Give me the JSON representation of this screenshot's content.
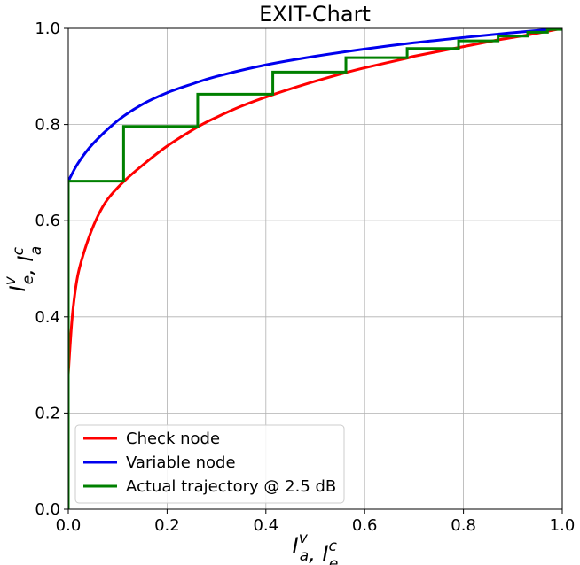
{
  "chart_data": {
    "type": "line",
    "title": "EXIT-Chart",
    "xlabel": "I_a^v, I_e^c",
    "ylabel": "I_e^v, I_a^c",
    "xlabel_parts": [
      {
        "t": "I",
        "sub": "a",
        "sup": "v"
      },
      {
        "t": ", ",
        "sub": "",
        "sup": ""
      },
      {
        "t": "I",
        "sub": "e",
        "sup": "c"
      }
    ],
    "ylabel_parts": [
      {
        "t": "I",
        "sub": "e",
        "sup": "v"
      },
      {
        "t": ", ",
        "sub": "",
        "sup": ""
      },
      {
        "t": "I",
        "sub": "a",
        "sup": "c"
      }
    ],
    "xlim": [
      0.0,
      1.0
    ],
    "ylim": [
      0.0,
      1.0
    ],
    "xticks": [
      "0.0",
      "0.2",
      "0.4",
      "0.6",
      "0.8",
      "1.0"
    ],
    "yticks": [
      "0.0",
      "0.2",
      "0.4",
      "0.6",
      "0.8",
      "1.0"
    ],
    "grid": true,
    "legend_position": "lower-left",
    "series": [
      {
        "name": "Check node",
        "color": "#ff0000",
        "style": "curve",
        "points": [
          [
            0.0,
            0.28
          ],
          [
            0.005,
            0.36
          ],
          [
            0.01,
            0.42
          ],
          [
            0.02,
            0.49
          ],
          [
            0.04,
            0.56
          ],
          [
            0.06,
            0.61
          ],
          [
            0.08,
            0.645
          ],
          [
            0.112,
            0.681
          ],
          [
            0.15,
            0.715
          ],
          [
            0.2,
            0.755
          ],
          [
            0.262,
            0.795
          ],
          [
            0.3,
            0.815
          ],
          [
            0.35,
            0.838
          ],
          [
            0.414,
            0.862
          ],
          [
            0.5,
            0.89
          ],
          [
            0.562,
            0.908
          ],
          [
            0.6,
            0.918
          ],
          [
            0.686,
            0.938
          ],
          [
            0.7,
            0.942
          ],
          [
            0.8,
            0.962
          ],
          [
            0.87,
            0.976
          ],
          [
            0.9,
            0.981
          ],
          [
            0.95,
            0.99
          ],
          [
            1.0,
            1.0
          ]
        ]
      },
      {
        "name": "Variable node",
        "color": "#0000ee",
        "style": "curve",
        "points": [
          [
            0.0,
            0.682
          ],
          [
            0.02,
            0.72
          ],
          [
            0.05,
            0.76
          ],
          [
            0.1,
            0.808
          ],
          [
            0.15,
            0.842
          ],
          [
            0.2,
            0.866
          ],
          [
            0.25,
            0.884
          ],
          [
            0.3,
            0.9
          ],
          [
            0.4,
            0.924
          ],
          [
            0.5,
            0.942
          ],
          [
            0.6,
            0.957
          ],
          [
            0.7,
            0.97
          ],
          [
            0.8,
            0.981
          ],
          [
            0.9,
            0.991
          ],
          [
            1.0,
            1.0
          ]
        ]
      },
      {
        "name": "Actual trajectory @ 2.5 dB",
        "color": "#008000",
        "style": "step",
        "points": [
          [
            0.0,
            0.0
          ],
          [
            0.0,
            0.682
          ],
          [
            0.112,
            0.682
          ],
          [
            0.112,
            0.796
          ],
          [
            0.262,
            0.796
          ],
          [
            0.262,
            0.863
          ],
          [
            0.414,
            0.863
          ],
          [
            0.414,
            0.909
          ],
          [
            0.562,
            0.909
          ],
          [
            0.562,
            0.939
          ],
          [
            0.686,
            0.939
          ],
          [
            0.686,
            0.958
          ],
          [
            0.79,
            0.958
          ],
          [
            0.79,
            0.974
          ],
          [
            0.87,
            0.974
          ],
          [
            0.87,
            0.984
          ],
          [
            0.93,
            0.984
          ],
          [
            0.93,
            0.992
          ],
          [
            0.97,
            0.992
          ],
          [
            0.97,
            0.998
          ],
          [
            1.0,
            0.998
          ],
          [
            1.0,
            1.0
          ]
        ]
      }
    ]
  }
}
